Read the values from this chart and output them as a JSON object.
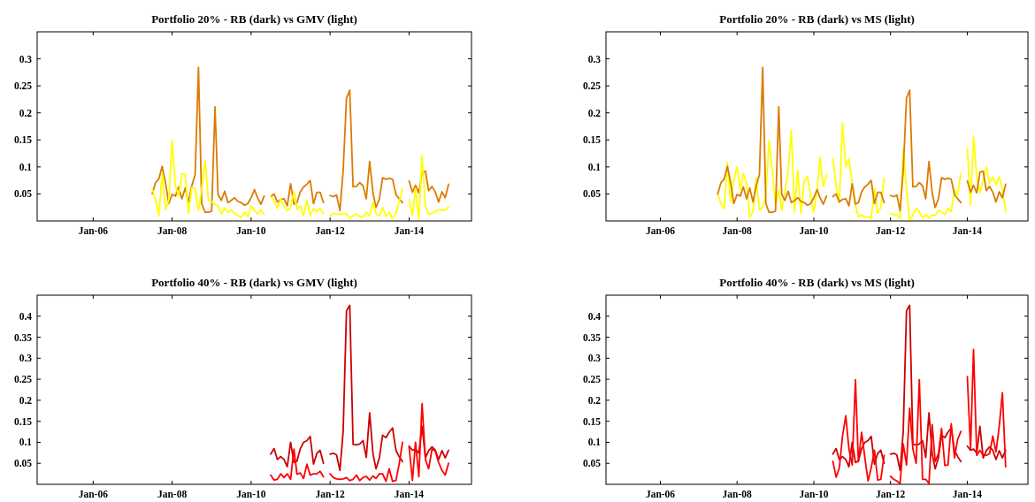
{
  "chart_data": [
    {
      "type": "line",
      "title": "Portfolio 20% - RB (dark) vs GMV (light)",
      "x": [
        "2007-07",
        "2007-08",
        "2007-09",
        "2007-10",
        "2007-11",
        "2007-12",
        "2008-01",
        "2008-02",
        "2008-03",
        "2008-04",
        "2008-05",
        "2008-06",
        "2008-07",
        "2008-08",
        "2008-09",
        "2008-10",
        "2008-11",
        "2008-12",
        "2009-01",
        "2009-02",
        "2009-03",
        "2009-04",
        "2009-05",
        "2009-06",
        "2009-07",
        "2009-08",
        "2009-09",
        "2009-10",
        "2009-11",
        "2009-12",
        "2010-01",
        "2010-02",
        "2010-03",
        "2010-04",
        "2010-05",
        "2010-06",
        "2010-07",
        "2010-08",
        "2010-09",
        "2010-10",
        "2010-11",
        "2010-12",
        "2011-01",
        "2011-02",
        "2011-03",
        "2011-04",
        "2011-05",
        "2011-06",
        "2011-07",
        "2011-08",
        "2011-09",
        "2011-10",
        "2011-11",
        "2011-12",
        "2012-01",
        "2012-02",
        "2012-03",
        "2012-04",
        "2012-05",
        "2012-06",
        "2012-07",
        "2012-08",
        "2012-09",
        "2012-10",
        "2012-11",
        "2012-12",
        "2013-01",
        "2013-02",
        "2013-03",
        "2013-04",
        "2013-05",
        "2013-06",
        "2013-07",
        "2013-08",
        "2013-09",
        "2013-10",
        "2013-11",
        "2013-12",
        "2014-01",
        "2014-02",
        "2014-03",
        "2014-04",
        "2014-05",
        "2014-06",
        "2014-07",
        "2014-08",
        "2014-09",
        "2014-10",
        "2014-11",
        "2014-12",
        "2015-01"
      ],
      "xlim": [
        "2004-08",
        "2015-08"
      ],
      "xticks": [
        {
          "value": "2006-01",
          "label": "Jan-06"
        },
        {
          "value": "2008-01",
          "label": "Jan-08"
        },
        {
          "value": "2010-01",
          "label": "Jan-10"
        },
        {
          "value": "2012-01",
          "label": "Jan-12"
        },
        {
          "value": "2014-01",
          "label": "Jan-14"
        }
      ],
      "ylim": [
        0,
        0.35
      ],
      "yticks": [
        0.05,
        0.1,
        0.15,
        0.2,
        0.25,
        0.3
      ],
      "series": [
        {
          "color": "#dc7b00",
          "values": [
            0.05,
            0.071,
            0.078,
            0.101,
            0.071,
            0.032,
            0.049,
            0.046,
            0.063,
            0.041,
            0.061,
            0.035,
            0.065,
            0.086,
            0.284,
            0.032,
            0.016,
            0.016,
            0.018,
            0.211,
            0.049,
            0.038,
            0.055,
            0.034,
            0.038,
            0.043,
            0.036,
            0.034,
            0.029,
            0.032,
            0.043,
            0.058,
            0.043,
            0.031,
            0.046,
            null,
            0.045,
            0.05,
            0.035,
            0.04,
            0.041,
            0.028,
            0.069,
            0.031,
            0.034,
            0.054,
            0.063,
            0.068,
            0.075,
            0.032,
            0.053,
            0.053,
            0.034,
            null,
            0.047,
            0.045,
            0.048,
            0.019,
            0.093,
            0.227,
            0.242,
            0.063,
            0.064,
            0.071,
            0.065,
            0.041,
            0.11,
            0.052,
            0.025,
            0.041,
            0.08,
            0.077,
            0.079,
            0.077,
            0.049,
            0.041,
            0.034,
            null,
            0.074,
            0.053,
            0.066,
            0.052,
            0.09,
            0.092,
            0.056,
            0.064,
            0.053,
            0.035,
            0.054,
            0.043,
            0.068
          ]
        },
        {
          "color": "#ffff00",
          "values": [
            0.06,
            0.038,
            0.01,
            0.087,
            0.021,
            0.038,
            0.149,
            0.065,
            0.046,
            0.087,
            0.087,
            0.014,
            0.062,
            0.06,
            0.019,
            0.06,
            0.112,
            0.038,
            0.036,
            0.03,
            0.028,
            0.013,
            0.024,
            0.016,
            0.021,
            0.013,
            0.01,
            0.006,
            0.016,
            0.008,
            0.028,
            0.019,
            0.013,
            0.021,
            0.012,
            null,
            0.045,
            0.038,
            0.023,
            0.041,
            0.027,
            0.019,
            0.025,
            0.055,
            0.021,
            0.027,
            0.01,
            0.038,
            0.01,
            0.023,
            0.017,
            0.023,
            0.013,
            null,
            0.01,
            0.014,
            0.013,
            0.012,
            0.014,
            0.013,
            0.005,
            0.01,
            0.013,
            0.008,
            0.007,
            0.016,
            0.01,
            0.035,
            0.013,
            0.009,
            0.025,
            0.009,
            0.016,
            0.005,
            0.013,
            0.035,
            0.06,
            null,
            0.039,
            0.01,
            0.06,
            0.004,
            0.121,
            0.027,
            0.013,
            0.014,
            0.018,
            0.021,
            0.02,
            0.02,
            0.026
          ]
        }
      ]
    },
    {
      "type": "line",
      "title": "Portfolio 20% - RB (dark) vs MS (light)",
      "x": [
        "2007-07",
        "2007-08",
        "2007-09",
        "2007-10",
        "2007-11",
        "2007-12",
        "2008-01",
        "2008-02",
        "2008-03",
        "2008-04",
        "2008-05",
        "2008-06",
        "2008-07",
        "2008-08",
        "2008-09",
        "2008-10",
        "2008-11",
        "2008-12",
        "2009-01",
        "2009-02",
        "2009-03",
        "2009-04",
        "2009-05",
        "2009-06",
        "2009-07",
        "2009-08",
        "2009-09",
        "2009-10",
        "2009-11",
        "2009-12",
        "2010-01",
        "2010-02",
        "2010-03",
        "2010-04",
        "2010-05",
        "2010-06",
        "2010-07",
        "2010-08",
        "2010-09",
        "2010-10",
        "2010-11",
        "2010-12",
        "2011-01",
        "2011-02",
        "2011-03",
        "2011-04",
        "2011-05",
        "2011-06",
        "2011-07",
        "2011-08",
        "2011-09",
        "2011-10",
        "2011-11",
        "2011-12",
        "2012-01",
        "2012-02",
        "2012-03",
        "2012-04",
        "2012-05",
        "2012-06",
        "2012-07",
        "2012-08",
        "2012-09",
        "2012-10",
        "2012-11",
        "2012-12",
        "2013-01",
        "2013-02",
        "2013-03",
        "2013-04",
        "2013-05",
        "2013-06",
        "2013-07",
        "2013-08",
        "2013-09",
        "2013-10",
        "2013-11",
        "2013-12",
        "2014-01",
        "2014-02",
        "2014-03",
        "2014-04",
        "2014-05",
        "2014-06",
        "2014-07",
        "2014-08",
        "2014-09",
        "2014-10",
        "2014-11",
        "2014-12",
        "2015-01"
      ],
      "xlim": [
        "2004-08",
        "2015-08"
      ],
      "xticks": [
        {
          "value": "2006-01",
          "label": "Jan-06"
        },
        {
          "value": "2008-01",
          "label": "Jan-08"
        },
        {
          "value": "2010-01",
          "label": "Jan-10"
        },
        {
          "value": "2012-01",
          "label": "Jan-12"
        },
        {
          "value": "2014-01",
          "label": "Jan-14"
        }
      ],
      "ylim": [
        0,
        0.35
      ],
      "yticks": [
        0.05,
        0.1,
        0.15,
        0.2,
        0.25,
        0.3
      ],
      "series": [
        {
          "color": "#ffff00",
          "values": [
            0.05,
            0.032,
            0.023,
            0.109,
            0.035,
            0.076,
            0.1,
            0.058,
            0.088,
            0.07,
            0.007,
            0.017,
            0.08,
            0.02,
            0.026,
            0.046,
            0.149,
            0.094,
            0.029,
            0.058,
            0.019,
            0.055,
            0.094,
            0.168,
            0.017,
            0.094,
            0.014,
            0.073,
            0.083,
            0.046,
            0.016,
            0.058,
            0.118,
            0.064,
            0.085,
            null,
            0.116,
            0.064,
            0.035,
            0.181,
            0.1,
            0.115,
            0.07,
            0.029,
            0.008,
            0.011,
            0.007,
            0.007,
            0.005,
            0.061,
            0.014,
            0.026,
            0.079,
            null,
            0.014,
            0.011,
            0.012,
            0.005,
            0.132,
            0.06,
            0.001,
            0.011,
            0.023,
            0.017,
            0.005,
            0.012,
            0.005,
            0.011,
            0.01,
            0.02,
            0.017,
            0.012,
            0.023,
            0.017,
            0.058,
            0.049,
            0.088,
            null,
            0.135,
            0.029,
            0.156,
            0.082,
            0.052,
            0.076,
            0.1,
            0.07,
            0.082,
            0.067,
            0.082,
            0.058,
            0.017
          ]
        },
        {
          "color": "#dc7b00",
          "values": [
            0.05,
            0.071,
            0.078,
            0.101,
            0.071,
            0.032,
            0.049,
            0.046,
            0.063,
            0.041,
            0.061,
            0.035,
            0.065,
            0.086,
            0.284,
            0.032,
            0.016,
            0.016,
            0.018,
            0.211,
            0.049,
            0.038,
            0.055,
            0.034,
            0.038,
            0.043,
            0.036,
            0.034,
            0.029,
            0.032,
            0.043,
            0.058,
            0.043,
            0.031,
            0.046,
            null,
            0.045,
            0.05,
            0.035,
            0.04,
            0.041,
            0.028,
            0.069,
            0.031,
            0.034,
            0.054,
            0.063,
            0.068,
            0.075,
            0.032,
            0.053,
            0.053,
            0.034,
            null,
            0.047,
            0.045,
            0.048,
            0.019,
            0.093,
            0.227,
            0.242,
            0.063,
            0.064,
            0.071,
            0.065,
            0.041,
            0.11,
            0.052,
            0.025,
            0.041,
            0.08,
            0.077,
            0.079,
            0.077,
            0.049,
            0.041,
            0.034,
            null,
            0.074,
            0.053,
            0.066,
            0.052,
            0.09,
            0.092,
            0.056,
            0.064,
            0.053,
            0.035,
            0.054,
            0.043,
            0.068
          ]
        }
      ]
    },
    {
      "type": "line",
      "title": "Portfolio 40% - RB (dark) vs GMV (light)",
      "x": [
        "2010-07",
        "2010-08",
        "2010-09",
        "2010-10",
        "2010-11",
        "2010-12",
        "2011-01",
        "2011-02",
        "2011-03",
        "2011-04",
        "2011-05",
        "2011-06",
        "2011-07",
        "2011-08",
        "2011-09",
        "2011-10",
        "2011-11",
        "2011-12",
        "2012-01",
        "2012-02",
        "2012-03",
        "2012-04",
        "2012-05",
        "2012-06",
        "2012-07",
        "2012-08",
        "2012-09",
        "2012-10",
        "2012-11",
        "2012-12",
        "2013-01",
        "2013-02",
        "2013-03",
        "2013-04",
        "2013-05",
        "2013-06",
        "2013-07",
        "2013-08",
        "2013-09",
        "2013-10",
        "2013-11",
        "2013-12",
        "2014-01",
        "2014-02",
        "2014-03",
        "2014-04",
        "2014-05",
        "2014-06",
        "2014-07",
        "2014-08",
        "2014-09",
        "2014-10",
        "2014-11",
        "2014-12",
        "2015-01"
      ],
      "xlim": [
        "2004-08",
        "2015-08"
      ],
      "xticks": [
        {
          "value": "2006-01",
          "label": "Jan-06"
        },
        {
          "value": "2008-01",
          "label": "Jan-08"
        },
        {
          "value": "2010-01",
          "label": "Jan-10"
        },
        {
          "value": "2012-01",
          "label": "Jan-12"
        },
        {
          "value": "2014-01",
          "label": "Jan-14"
        }
      ],
      "ylim": [
        0,
        0.45
      ],
      "yticks": [
        0.05,
        0.1,
        0.15,
        0.2,
        0.25,
        0.3,
        0.35,
        0.4
      ],
      "series": [
        {
          "color": "#cc0000",
          "values": [
            0.072,
            0.085,
            0.059,
            0.066,
            0.059,
            0.042,
            0.1,
            0.052,
            0.055,
            0.085,
            0.1,
            0.104,
            0.114,
            0.048,
            0.074,
            0.081,
            0.05,
            null,
            0.072,
            0.074,
            0.07,
            0.033,
            0.126,
            0.413,
            0.426,
            0.095,
            0.094,
            0.096,
            0.104,
            0.064,
            0.17,
            0.072,
            0.037,
            0.063,
            0.117,
            0.111,
            0.124,
            0.134,
            0.081,
            0.066,
            0.054,
            null,
            0.091,
            0.081,
            0.084,
            0.074,
            0.138,
            0.063,
            0.08,
            0.089,
            0.081,
            0.059,
            0.08,
            0.063,
            0.081
          ]
        },
        {
          "color": "#ff0000",
          "values": [
            0.022,
            0.01,
            0.012,
            0.025,
            0.016,
            0.025,
            0.012,
            0.084,
            0.024,
            0.027,
            0.014,
            0.048,
            0.022,
            0.025,
            0.025,
            0.031,
            0.018,
            null,
            0.025,
            0.016,
            0.013,
            0.012,
            0.013,
            0.016,
            0.009,
            0.012,
            0.022,
            0.009,
            0.016,
            0.019,
            0.01,
            0.02,
            0.014,
            0.025,
            0.025,
            0.007,
            0.037,
            0.007,
            0.009,
            0.048,
            0.1,
            null,
            0.089,
            0.009,
            0.1,
            0.018,
            0.192,
            0.059,
            0.037,
            0.084,
            0.079,
            0.052,
            0.033,
            0.022,
            0.05
          ]
        }
      ]
    },
    {
      "type": "line",
      "title": "Portfolio 40% - RB (dark) vs MS (light)",
      "x": [
        "2010-07",
        "2010-08",
        "2010-09",
        "2010-10",
        "2010-11",
        "2010-12",
        "2011-01",
        "2011-02",
        "2011-03",
        "2011-04",
        "2011-05",
        "2011-06",
        "2011-07",
        "2011-08",
        "2011-09",
        "2011-10",
        "2011-11",
        "2011-12",
        "2012-01",
        "2012-02",
        "2012-03",
        "2012-04",
        "2012-05",
        "2012-06",
        "2012-07",
        "2012-08",
        "2012-09",
        "2012-10",
        "2012-11",
        "2012-12",
        "2013-01",
        "2013-02",
        "2013-03",
        "2013-04",
        "2013-05",
        "2013-06",
        "2013-07",
        "2013-08",
        "2013-09",
        "2013-10",
        "2013-11",
        "2013-12",
        "2014-01",
        "2014-02",
        "2014-03",
        "2014-04",
        "2014-05",
        "2014-06",
        "2014-07",
        "2014-08",
        "2014-09",
        "2014-10",
        "2014-11",
        "2014-12",
        "2015-01"
      ],
      "xlim": [
        "2004-08",
        "2015-08"
      ],
      "xticks": [
        {
          "value": "2006-01",
          "label": "Jan-06"
        },
        {
          "value": "2008-01",
          "label": "Jan-08"
        },
        {
          "value": "2010-01",
          "label": "Jan-10"
        },
        {
          "value": "2012-01",
          "label": "Jan-12"
        },
        {
          "value": "2014-01",
          "label": "Jan-14"
        }
      ],
      "ylim": [
        0,
        0.45
      ],
      "yticks": [
        0.05,
        0.1,
        0.15,
        0.2,
        0.25,
        0.3,
        0.35,
        0.4
      ],
      "series": [
        {
          "color": "#cc0000",
          "values": [
            0.072,
            0.085,
            0.059,
            0.066,
            0.059,
            0.042,
            0.1,
            0.052,
            0.055,
            0.085,
            0.1,
            0.104,
            0.114,
            0.048,
            0.074,
            0.081,
            0.05,
            null,
            0.072,
            0.074,
            0.07,
            0.033,
            0.126,
            0.413,
            0.426,
            0.095,
            0.094,
            0.096,
            0.104,
            0.064,
            0.17,
            0.072,
            0.037,
            0.063,
            0.117,
            0.111,
            0.124,
            0.134,
            0.081,
            0.066,
            0.054,
            null,
            0.091,
            0.081,
            0.084,
            0.074,
            0.138,
            0.063,
            0.08,
            0.089,
            0.081,
            0.059,
            0.08,
            0.063,
            0.081
          ]
        },
        {
          "color": "#ff0000",
          "values": [
            0.055,
            0.017,
            0.039,
            0.115,
            0.163,
            0.084,
            0.046,
            0.249,
            0.054,
            0.124,
            0.065,
            0.008,
            0.039,
            0.081,
            0.01,
            0.012,
            0.069,
            null,
            0.019,
            0.012,
            0.008,
            0.002,
            0.096,
            0.046,
            0.181,
            0.084,
            0.05,
            0.249,
            0.012,
            0.012,
            0.002,
            0.142,
            0.054,
            0.073,
            0.133,
            0.045,
            0.046,
            0.144,
            0.063,
            0.107,
            0.126,
            null,
            0.256,
            0.084,
            0.321,
            0.069,
            0.081,
            0.069,
            0.069,
            0.073,
            0.115,
            0.077,
            0.138,
            0.218,
            0.042
          ]
        }
      ]
    }
  ]
}
